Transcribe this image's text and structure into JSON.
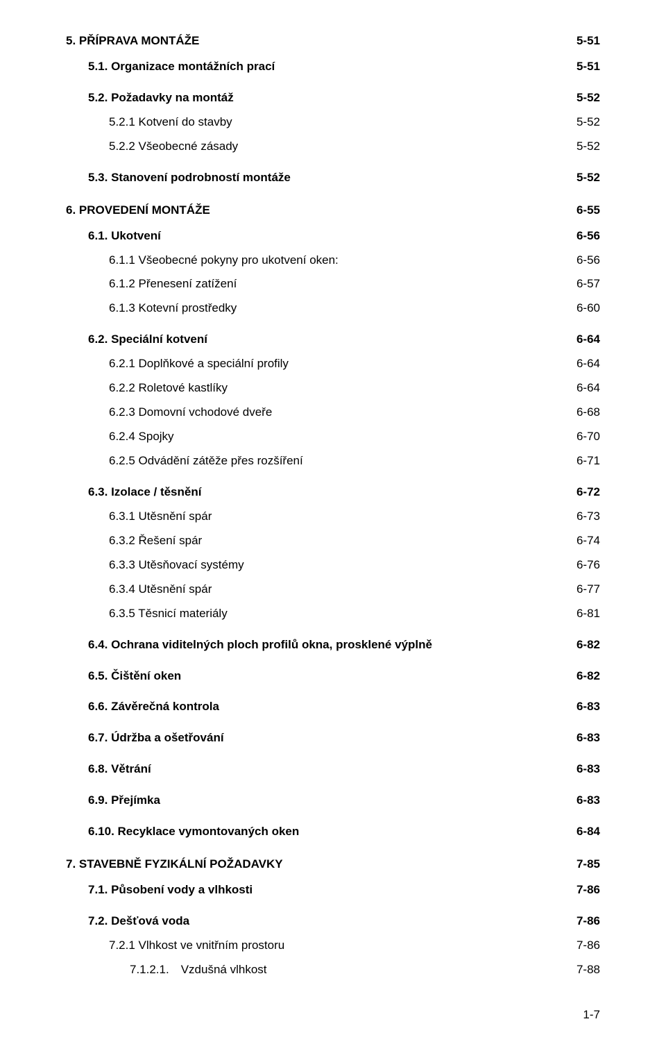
{
  "entries": [
    {
      "level": 0,
      "bold": true,
      "gap": "g-top",
      "label": "5. PŘÍPRAVA MONTÁŽE",
      "page": "5-51"
    },
    {
      "level": 1,
      "bold": true,
      "gap": "g-first-child",
      "label": "5.1. Organizace montážních prací",
      "page": "5-51"
    },
    {
      "level": 1,
      "bold": true,
      "gap": "g-before-h",
      "label": "5.2. Požadavky na montáž",
      "page": "5-52"
    },
    {
      "level": 2,
      "bold": false,
      "gap": "g-after-sub",
      "label": "5.2.1 Kotvení do stavby",
      "page": "5-52"
    },
    {
      "level": 2,
      "bold": false,
      "gap": "g-after-sub",
      "label": "5.2.2 Všeobecné zásady",
      "page": "5-52"
    },
    {
      "level": 1,
      "bold": true,
      "gap": "g-before-h",
      "label": "5.3. Stanovení podrobností montáže",
      "page": "5-52"
    },
    {
      "level": 0,
      "bold": true,
      "gap": "g-before-H",
      "label": "6. PROVEDENÍ MONTÁŽE",
      "page": "6-55"
    },
    {
      "level": 1,
      "bold": true,
      "gap": "g-first-child",
      "label": "6.1. Ukotvení",
      "page": "6-56"
    },
    {
      "level": 2,
      "bold": false,
      "gap": "g-after-sub",
      "label": "6.1.1 Všeobecné pokyny pro ukotvení oken:",
      "page": "6-56"
    },
    {
      "level": 2,
      "bold": false,
      "gap": "g-after-sub",
      "label": "6.1.2 Přenesení zatížení",
      "page": "6-57"
    },
    {
      "level": 2,
      "bold": false,
      "gap": "g-after-sub",
      "label": "6.1.3 Kotevní prostředky",
      "page": "6-60"
    },
    {
      "level": 1,
      "bold": true,
      "gap": "g-before-h",
      "label": "6.2. Speciální kotvení",
      "page": "6-64"
    },
    {
      "level": 2,
      "bold": false,
      "gap": "g-after-sub",
      "label": "6.2.1 Doplňkové a speciální profily",
      "page": "6-64"
    },
    {
      "level": 2,
      "bold": false,
      "gap": "g-after-sub",
      "label": "6.2.2 Roletové kastlíky",
      "page": "6-64"
    },
    {
      "level": 2,
      "bold": false,
      "gap": "g-after-sub",
      "label": "6.2.3 Domovní vchodové dveře",
      "page": "6-68"
    },
    {
      "level": 2,
      "bold": false,
      "gap": "g-after-sub",
      "label": "6.2.4 Spojky",
      "page": "6-70"
    },
    {
      "level": 2,
      "bold": false,
      "gap": "g-after-sub",
      "label": "6.2.5 Odvádění zátěže přes rozšíření",
      "page": "6-71"
    },
    {
      "level": 1,
      "bold": true,
      "gap": "g-before-h",
      "label": "6.3. Izolace / těsnění",
      "page": "6-72"
    },
    {
      "level": 2,
      "bold": false,
      "gap": "g-after-sub",
      "label": "6.3.1 Utěsnění spár",
      "page": "6-73"
    },
    {
      "level": 2,
      "bold": false,
      "gap": "g-after-sub",
      "label": "6.3.2 Řešení spár",
      "page": "6-74"
    },
    {
      "level": 2,
      "bold": false,
      "gap": "g-after-sub",
      "label": "6.3.3 Utěsňovací systémy",
      "page": "6-76"
    },
    {
      "level": 2,
      "bold": false,
      "gap": "g-after-sub",
      "label": "6.3.4 Utěsnění spár",
      "page": "6-77"
    },
    {
      "level": 2,
      "bold": false,
      "gap": "g-after-sub",
      "label": "6.3.5 Těsnicí materiály",
      "page": "6-81"
    },
    {
      "level": 1,
      "bold": true,
      "gap": "g-before-h",
      "label": "6.4. Ochrana viditelných ploch profilů okna, prosklené výplně",
      "page": "6-82"
    },
    {
      "level": 1,
      "bold": true,
      "gap": "g-before-h",
      "label": "6.5. Čištění oken",
      "page": "6-82"
    },
    {
      "level": 1,
      "bold": true,
      "gap": "g-before-h",
      "label": "6.6. Závěrečná kontrola",
      "page": "6-83"
    },
    {
      "level": 1,
      "bold": true,
      "gap": "g-before-h",
      "label": "6.7. Údržba a ošetřování",
      "page": "6-83"
    },
    {
      "level": 1,
      "bold": true,
      "gap": "g-before-h",
      "label": "6.8. Větrání",
      "page": "6-83"
    },
    {
      "level": 1,
      "bold": true,
      "gap": "g-before-h",
      "label": "6.9. Přejímka",
      "page": "6-83"
    },
    {
      "level": 1,
      "bold": true,
      "gap": "g-before-h",
      "label": "6.10. Recyklace vymontovaných oken",
      "page": "6-84"
    },
    {
      "level": 0,
      "bold": true,
      "gap": "g-before-H",
      "label": "7. STAVEBNĚ FYZIKÁLNÍ POŽADAVKY",
      "page": "7-85"
    },
    {
      "level": 1,
      "bold": true,
      "gap": "g-first-child",
      "label": "7.1. Působení vody a vlhkosti",
      "page": "7-86"
    },
    {
      "level": 1,
      "bold": true,
      "gap": "g-before-h",
      "label": "7.2. Dešťová voda",
      "page": "7-86"
    },
    {
      "level": 2,
      "bold": false,
      "gap": "g-after-sub",
      "label": "7.2.1 Vlhkost ve vnitřním prostoru",
      "page": "7-86"
    },
    {
      "level": 3,
      "bold": false,
      "gap": "g-after-sub",
      "label": "7.1.2.1. Vzdušná vlhkost",
      "page": "7-88"
    }
  ],
  "page_number": "1-7"
}
